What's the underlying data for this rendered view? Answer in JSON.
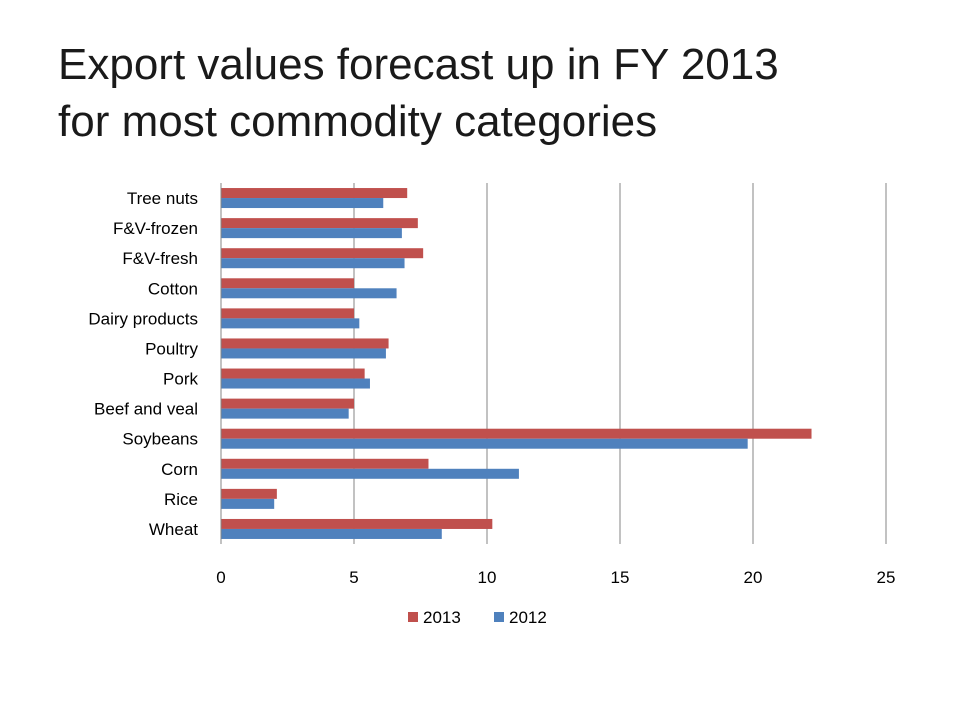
{
  "title": {
    "line1": "Export values forecast up in FY 2013",
    "line2": "for most commodity categories"
  },
  "chart_data": {
    "type": "bar",
    "orientation": "horizontal",
    "categories": [
      "Wheat",
      "Rice",
      "Corn",
      "Soybeans",
      "Beef and veal",
      "Pork",
      "Poultry",
      "Dairy products",
      "Cotton",
      "F&V-fresh",
      "F&V-frozen",
      "Tree nuts"
    ],
    "series": [
      {
        "name": "2013",
        "color": "#c0504d",
        "values": [
          10.2,
          2.1,
          7.8,
          22.2,
          5.0,
          5.4,
          6.3,
          5.0,
          5.0,
          7.6,
          7.4,
          7.0
        ]
      },
      {
        "name": "2012",
        "color": "#4f81bd",
        "values": [
          8.3,
          2.0,
          11.2,
          19.8,
          4.8,
          5.6,
          6.2,
          5.2,
          6.6,
          6.9,
          6.8,
          6.1
        ]
      }
    ],
    "xlim": [
      0,
      25
    ],
    "xticks": [
      "0",
      "5",
      "10",
      "15",
      "20",
      "25"
    ],
    "grid": true,
    "legend": "bottom"
  }
}
